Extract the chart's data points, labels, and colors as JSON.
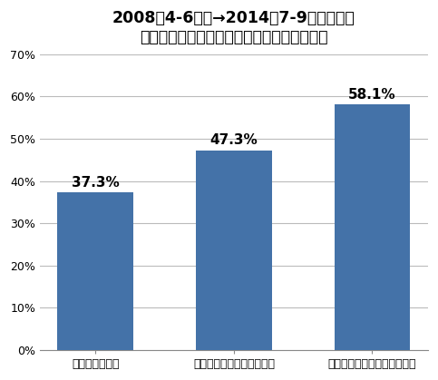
{
  "title_line1": "2008年4-6月期→2014年7-9月期に至る",
  "title_line2": "ビッグコミック系各紙の印刷証明部数減少率",
  "categories": [
    "ビッグコミック",
    "ビッグコミックスピリッツ",
    "ビッグコミックスペリオール"
  ],
  "values": [
    0.373,
    0.473,
    0.581
  ],
  "labels": [
    "37.3%",
    "47.3%",
    "58.1%"
  ],
  "bar_color": "#4472a8",
  "ylim": [
    0,
    0.7
  ],
  "yticks": [
    0.0,
    0.1,
    0.2,
    0.3,
    0.4,
    0.5,
    0.6,
    0.7
  ],
  "ytick_labels": [
    "0%",
    "10%",
    "20%",
    "30%",
    "40%",
    "50%",
    "60%",
    "70%"
  ],
  "background_color": "#ffffff",
  "grid_color": "#bbbbbb",
  "title_fontsize": 12.5,
  "label_fontsize": 11,
  "tick_fontsize": 9,
  "bar_width": 0.55
}
